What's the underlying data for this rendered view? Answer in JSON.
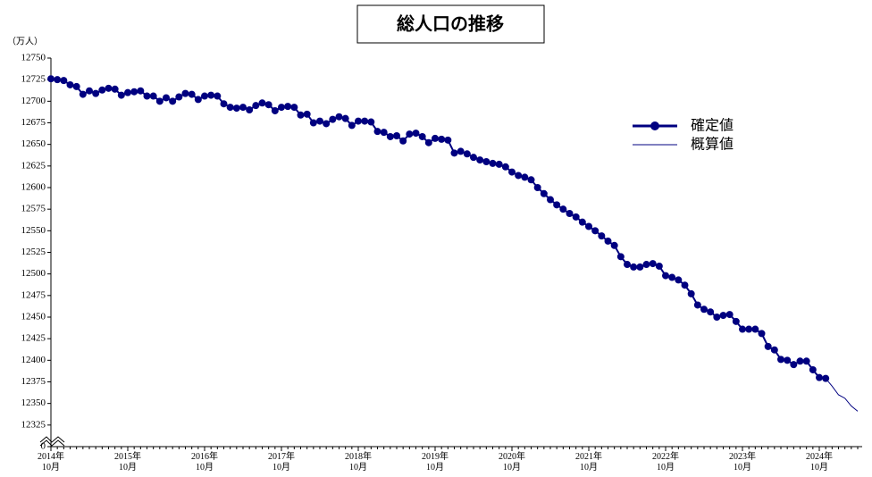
{
  "chart_data": {
    "type": "line",
    "title": "総人口の推移",
    "y_label": "（万人）",
    "categories": [
      "2014年\n10月",
      null,
      null,
      null,
      null,
      null,
      null,
      null,
      null,
      null,
      null,
      null,
      "2015年\n10月",
      null,
      null,
      null,
      null,
      null,
      null,
      null,
      null,
      null,
      null,
      null,
      "2016年\n10月",
      null,
      null,
      null,
      null,
      null,
      null,
      null,
      null,
      null,
      null,
      null,
      "2017年\n10月",
      null,
      null,
      null,
      null,
      null,
      null,
      null,
      null,
      null,
      null,
      null,
      "2018年\n10月",
      null,
      null,
      null,
      null,
      null,
      null,
      null,
      null,
      null,
      null,
      null,
      "2019年\n10月",
      null,
      null,
      null,
      null,
      null,
      null,
      null,
      null,
      null,
      null,
      null,
      "2020年\n10月",
      null,
      null,
      null,
      null,
      null,
      null,
      null,
      null,
      null,
      null,
      null,
      "2021年\n10月",
      null,
      null,
      null,
      null,
      null,
      null,
      null,
      null,
      null,
      null,
      null,
      "2022年\n10月",
      null,
      null,
      null,
      null,
      null,
      null,
      null,
      null,
      null,
      null,
      null,
      "2023年\n10月",
      null,
      null,
      null,
      null,
      null,
      null,
      null,
      null,
      null,
      null,
      null,
      "2024年\n10月",
      null,
      null,
      null,
      null,
      null,
      null
    ],
    "series": [
      {
        "name": "確定値",
        "color": "#000080",
        "marker": true,
        "values": [
          12726,
          12725,
          12724,
          12719,
          12717,
          12708,
          12712,
          12709,
          12713,
          12715,
          12714,
          12707,
          12710,
          12711,
          12712,
          12706,
          12706,
          12700,
          12704,
          12700,
          12705,
          12709,
          12708,
          12702,
          12706,
          12707,
          12706,
          12697,
          12693,
          12692,
          12693,
          12690,
          12695,
          12698,
          12696,
          12689,
          12693,
          12694,
          12693,
          12684,
          12685,
          12675,
          12677,
          12674,
          12679,
          12682,
          12680,
          12672,
          12677,
          12677,
          12676,
          12665,
          12664,
          12659,
          12660,
          12654,
          12662,
          12663,
          12659,
          12652,
          12657,
          12656,
          12655,
          12640,
          12642,
          12639,
          12635,
          12632,
          12630,
          12628,
          12627,
          12624,
          12618,
          12614,
          12612,
          12609,
          12600,
          12593,
          12586,
          12580,
          12575,
          12570,
          12566,
          12560,
          12555,
          12550,
          12544,
          12538,
          12533,
          12520,
          12511,
          12508,
          12508,
          12511,
          12512,
          12509,
          12498,
          12496,
          12493,
          12487,
          12477,
          12464,
          12459,
          12456,
          12450,
          12452,
          12453,
          12445,
          12436,
          12436,
          12436,
          12431,
          12416,
          12412,
          12401,
          12400,
          12395,
          12399,
          12399,
          12389,
          12380,
          12379,
          null,
          null,
          null,
          null,
          null
        ]
      },
      {
        "name": "概算値",
        "color": "#000080",
        "marker": false,
        "values": [
          null,
          null,
          null,
          null,
          null,
          null,
          null,
          null,
          null,
          null,
          null,
          null,
          null,
          null,
          null,
          null,
          null,
          null,
          null,
          null,
          null,
          null,
          null,
          null,
          null,
          null,
          null,
          null,
          null,
          null,
          null,
          null,
          null,
          null,
          null,
          null,
          null,
          null,
          null,
          null,
          null,
          null,
          null,
          null,
          null,
          null,
          null,
          null,
          null,
          null,
          null,
          null,
          null,
          null,
          null,
          null,
          null,
          null,
          null,
          null,
          null,
          null,
          null,
          null,
          null,
          null,
          null,
          null,
          null,
          null,
          null,
          null,
          null,
          null,
          null,
          null,
          null,
          null,
          null,
          null,
          null,
          null,
          null,
          null,
          null,
          null,
          null,
          null,
          null,
          null,
          null,
          null,
          null,
          null,
          null,
          null,
          null,
          null,
          null,
          null,
          null,
          null,
          null,
          null,
          null,
          null,
          null,
          null,
          null,
          null,
          null,
          null,
          null,
          null,
          null,
          null,
          null,
          null,
          null,
          null,
          null,
          12379,
          12370,
          12360,
          12356,
          12347,
          12341
        ]
      }
    ],
    "ylim": [
      0,
      12750
    ],
    "yticks": [
      0,
      12325,
      12350,
      12375,
      12400,
      12425,
      12450,
      12475,
      12500,
      12525,
      12550,
      12575,
      12600,
      12625,
      12650,
      12675,
      12700,
      12725,
      12750
    ],
    "grid": false
  }
}
